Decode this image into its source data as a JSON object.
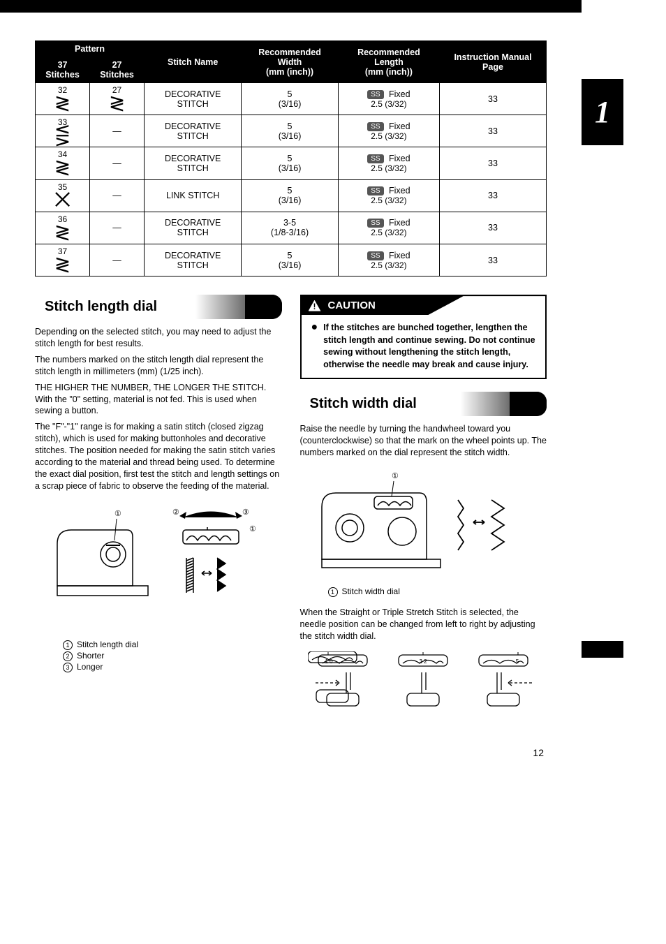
{
  "chapter_number": "1",
  "page_number": "12",
  "table": {
    "headers": {
      "pattern": "Pattern",
      "col_37": "37 Stitches",
      "col_27": "27 Stitches",
      "stitch_name": "Stitch Name",
      "rec_width": "Recommended Width",
      "rec_width_unit": "(mm (inch))",
      "rec_length": "Recommended Length",
      "rec_length_unit": "(mm (inch))",
      "manual_page": "Instruction Manual Page"
    },
    "ss_label": "SS",
    "fixed_label": "Fixed",
    "rows": [
      {
        "num37": "32",
        "glyph37": "≷",
        "num27": "27",
        "glyph27": "≷",
        "name": "DECORATIVE STITCH",
        "width_mm": "5",
        "width_in": "(3/16)",
        "len": "2.5 (3/32)",
        "page": "33"
      },
      {
        "num37": "33",
        "glyph37": "⋚",
        "num27": "—",
        "glyph27": "",
        "name": "DECORATIVE STITCH",
        "width_mm": "5",
        "width_in": "(3/16)",
        "len": "2.5 (3/32)",
        "page": "33"
      },
      {
        "num37": "34",
        "glyph37": "≷",
        "num27": "—",
        "glyph27": "",
        "name": "DECORATIVE STITCH",
        "width_mm": "5",
        "width_in": "(3/16)",
        "len": "2.5 (3/32)",
        "page": "33"
      },
      {
        "num37": "35",
        "glyph37": "⨉",
        "num27": "—",
        "glyph27": "",
        "name": "LINK STITCH",
        "width_mm": "5",
        "width_in": "(3/16)",
        "len": "2.5 (3/32)",
        "page": "33"
      },
      {
        "num37": "36",
        "glyph37": "≷",
        "num27": "—",
        "glyph27": "",
        "name": "DECORATIVE STITCH",
        "width_mm": "3-5",
        "width_in": "(1/8-3/16)",
        "len": "2.5 (3/32)",
        "page": "33"
      },
      {
        "num37": "37",
        "glyph37": "≷",
        "num27": "—",
        "glyph27": "",
        "name": "DECORATIVE STITCH",
        "width_mm": "5",
        "width_in": "(3/16)",
        "len": "2.5 (3/32)",
        "page": "33"
      }
    ]
  },
  "left": {
    "heading": "Stitch length dial",
    "p1": "Depending on the selected stitch, you may need to adjust the stitch length for best results.",
    "p2": "The numbers marked on the stitch length dial represent the stitch length in millimeters (mm) (1/25 inch).",
    "p3": "THE HIGHER THE NUMBER, THE LONGER THE STITCH. With the \"0\" setting, material is not fed. This is used when sewing a button.",
    "p4": "The \"F\"-\"1\" range is for making a satin stitch (closed zigzag stitch), which is used for making buttonholes and decorative stitches. The position needed for making the satin stitch varies according to the material and thread being used. To determine the exact dial position, first test the stitch and length settings on a scrap piece of fabric to observe the feeding of the material.",
    "legend": {
      "1": "Stitch length dial",
      "2": "Shorter",
      "3": "Longer"
    }
  },
  "right": {
    "caution_label": "CAUTION",
    "caution_text": "If the stitches are bunched together, lengthen the stitch length and continue sewing. Do not continue sewing without lengthening the stitch length, otherwise the needle may break and cause injury.",
    "heading": "Stitch width dial",
    "p1": "Raise the needle by turning the handwheel toward you (counterclockwise) so that the mark on the wheel points up. The numbers marked on the dial represent the stitch width.",
    "legend_1": "Stitch width dial",
    "p2": "When the Straight or Triple Stretch Stitch is selected, the needle position can be changed from left to right by adjusting the stitch width dial."
  },
  "colors": {
    "black": "#000000",
    "white": "#ffffff",
    "badge_bg": "#555555"
  }
}
